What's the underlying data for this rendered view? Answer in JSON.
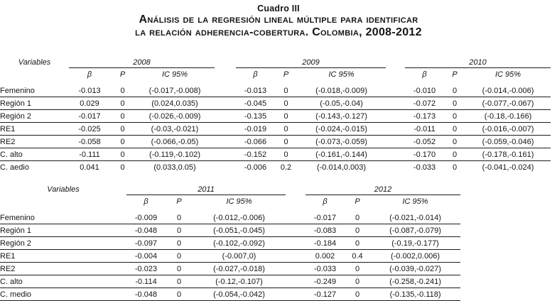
{
  "page": {
    "kicker": "Cuadro III",
    "title_line1": "Análisis de la regresión lineal múltiple para identificar",
    "title_line2": "la relación adherencia-cobertura. Colombia, 2008-2012"
  },
  "labels": {
    "variables": "Variables",
    "beta": "β",
    "p": "P",
    "ic": "IC 95%"
  },
  "tables": [
    {
      "years": [
        "2008",
        "2009",
        "2010"
      ],
      "rows": [
        {
          "variable": "Femenino",
          "values": [
            {
              "beta": "-0.013",
              "p": "0",
              "ic": "(-0.017,-0.008)"
            },
            {
              "beta": "-0.013",
              "p": "0",
              "ic": "(-0.018,-0.009)"
            },
            {
              "beta": "-0.010",
              "p": "0",
              "ic": "(-0.014,-0.006)"
            }
          ]
        },
        {
          "variable": "Región 1",
          "values": [
            {
              "beta": "0.029",
              "p": "0",
              "ic": "(0.024,0.035)"
            },
            {
              "beta": "-0.045",
              "p": "0",
              "ic": "(-0.05,-0.04)"
            },
            {
              "beta": "-0.072",
              "p": "0",
              "ic": "(-0.077,-0.067)"
            }
          ]
        },
        {
          "variable": "Región 2",
          "values": [
            {
              "beta": "-0.017",
              "p": "0",
              "ic": "(-0.026,-0.009)"
            },
            {
              "beta": "-0.135",
              "p": "0",
              "ic": "(-0.143,-0.127)"
            },
            {
              "beta": "-0.173",
              "p": "0",
              "ic": "(-0.18,-0.166)"
            }
          ]
        },
        {
          "variable": "RE1",
          "values": [
            {
              "beta": "-0.025",
              "p": "0",
              "ic": "(-0.03,-0.021)"
            },
            {
              "beta": "-0.019",
              "p": "0",
              "ic": "(-0.024,-0.015)"
            },
            {
              "beta": "-0.011",
              "p": "0",
              "ic": "(-0.016,-0.007)"
            }
          ]
        },
        {
          "variable": "RE2",
          "values": [
            {
              "beta": "-0.058",
              "p": "0",
              "ic": "(-0.066,-0.05)"
            },
            {
              "beta": "-0.066",
              "p": "0",
              "ic": "(-0.073,-0.059)"
            },
            {
              "beta": "-0.052",
              "p": "0",
              "ic": "(-0.059,-0.046)"
            }
          ]
        },
        {
          "variable": "C. alto",
          "values": [
            {
              "beta": "-0.111",
              "p": "0",
              "ic": "(-0.119,-0.102)"
            },
            {
              "beta": "-0.152",
              "p": "0",
              "ic": "(-0.161,-0.144)"
            },
            {
              "beta": "-0.170",
              "p": "0",
              "ic": "(-0.178,-0.161)"
            }
          ]
        },
        {
          "variable": "C. aedio",
          "values": [
            {
              "beta": "0.041",
              "p": "0",
              "ic": "(0.033,0.05)"
            },
            {
              "beta": "-0.006",
              "p": "0.2",
              "ic": "(-0.014,0.003)"
            },
            {
              "beta": "-0.033",
              "p": "0",
              "ic": "(-0.041,-0.024)"
            }
          ]
        }
      ]
    },
    {
      "years": [
        "2011",
        "2012"
      ],
      "rows": [
        {
          "variable": "Femenino",
          "values": [
            {
              "beta": "-0.009",
              "p": "0",
              "ic": "(-0.012,-0.006)"
            },
            {
              "beta": "-0.017",
              "p": "0",
              "ic": "(-0.021,-0.014)"
            }
          ]
        },
        {
          "variable": "Región 1",
          "values": [
            {
              "beta": "-0.048",
              "p": "0",
              "ic": "(-0.051,-0.045)"
            },
            {
              "beta": "-0.083",
              "p": "0",
              "ic": "(-0.087,-0.079)"
            }
          ]
        },
        {
          "variable": "Región 2",
          "values": [
            {
              "beta": "-0.097",
              "p": "0",
              "ic": "(-0.102,-0.092)"
            },
            {
              "beta": "-0.184",
              "p": "0",
              "ic": "(-0.19,-0.177)"
            }
          ]
        },
        {
          "variable": "RE1",
          "values": [
            {
              "beta": "-0.004",
              "p": "0",
              "ic": "(-0.007,0)"
            },
            {
              "beta": "0.002",
              "p": "0.4",
              "ic": "(-0.002,0.006)"
            }
          ]
        },
        {
          "variable": "RE2",
          "values": [
            {
              "beta": "-0.023",
              "p": "0",
              "ic": "(-0.027,-0.018)"
            },
            {
              "beta": "-0.033",
              "p": "0",
              "ic": "(-0.039,-0.027)"
            }
          ]
        },
        {
          "variable": "C. alto",
          "values": [
            {
              "beta": "-0.114",
              "p": "0",
              "ic": "(-0.12,-0.107)"
            },
            {
              "beta": "-0.249",
              "p": "0",
              "ic": "(-0.258,-0.241)"
            }
          ]
        },
        {
          "variable": "C. medio",
          "values": [
            {
              "beta": "-0.048",
              "p": "0",
              "ic": "(-0.054,-0.042)"
            },
            {
              "beta": "-0.127",
              "p": "0",
              "ic": "(-0.135,-0.118)"
            }
          ]
        }
      ]
    }
  ]
}
